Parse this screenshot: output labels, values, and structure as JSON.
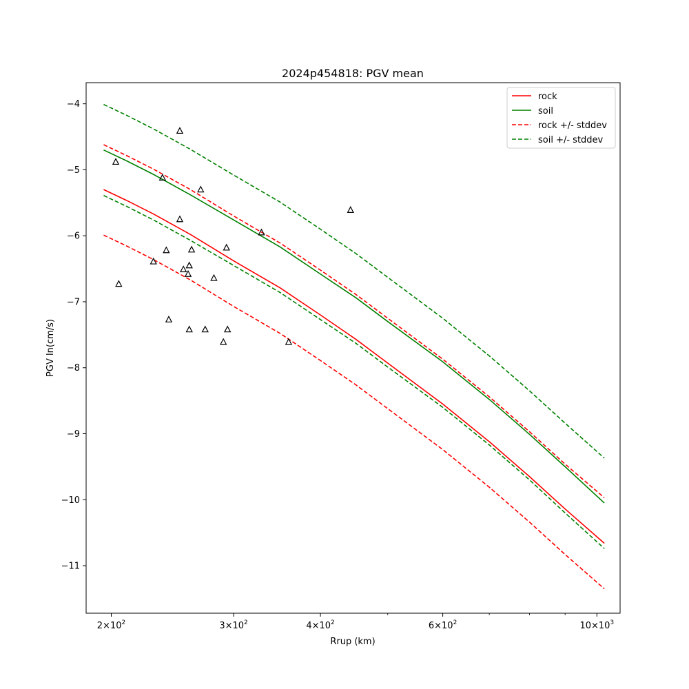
{
  "chart_data": {
    "type": "line",
    "title": "2024p454818: PGV mean",
    "xlabel": "Rrup (km)",
    "ylabel": "PGV ln(cm/s)",
    "xscale": "log",
    "xlim": [
      184,
      1080
    ],
    "ylim": [
      -11.72,
      -3.68
    ],
    "legend_position": "top-right",
    "grid": false,
    "x_major_ticks": [
      {
        "value": 200,
        "base": "2",
        "sup": "2"
      },
      {
        "value": 300,
        "base": "3",
        "sup": "2"
      },
      {
        "value": 400,
        "base": "4",
        "sup": "2"
      },
      {
        "value": 600,
        "base": "6",
        "sup": "2"
      },
      {
        "value": 1000,
        "base": "10",
        "sup": "3"
      }
    ],
    "x_minor_ticks": [
      500,
      700,
      800,
      900
    ],
    "y_ticks": [
      -4,
      -5,
      -6,
      -7,
      -8,
      -9,
      -10,
      -11
    ],
    "y_tick_labels": [
      "−4",
      "−5",
      "−6",
      "−7",
      "−8",
      "−9",
      "−10",
      "−11"
    ],
    "series": [
      {
        "name": "rock",
        "color": "#ff0000",
        "dash": "solid",
        "points": [
          [
            195,
            -5.3
          ],
          [
            210,
            -5.46
          ],
          [
            230,
            -5.67
          ],
          [
            260,
            -5.98
          ],
          [
            300,
            -6.38
          ],
          [
            350,
            -6.79
          ],
          [
            400,
            -7.2
          ],
          [
            450,
            -7.57
          ],
          [
            500,
            -7.93
          ],
          [
            600,
            -8.55
          ],
          [
            700,
            -9.12
          ],
          [
            800,
            -9.65
          ],
          [
            900,
            -10.14
          ],
          [
            1025,
            -10.66
          ]
        ]
      },
      {
        "name": "soil",
        "color": "#008000",
        "dash": "solid",
        "points": [
          [
            195,
            -4.7
          ],
          [
            210,
            -4.86
          ],
          [
            230,
            -5.07
          ],
          [
            260,
            -5.38
          ],
          [
            300,
            -5.76
          ],
          [
            350,
            -6.17
          ],
          [
            400,
            -6.58
          ],
          [
            450,
            -6.94
          ],
          [
            500,
            -7.3
          ],
          [
            600,
            -7.91
          ],
          [
            700,
            -8.48
          ],
          [
            800,
            -9.01
          ],
          [
            900,
            -9.5
          ],
          [
            1025,
            -10.05
          ]
        ]
      },
      {
        "name": "rock +/- stddev",
        "color": "#ff0000",
        "dash": "dashed",
        "points": [
          [
            195,
            -4.62
          ],
          [
            210,
            -4.78
          ],
          [
            230,
            -4.99
          ],
          [
            260,
            -5.3
          ],
          [
            300,
            -5.7
          ],
          [
            350,
            -6.11
          ],
          [
            400,
            -6.52
          ],
          [
            450,
            -6.89
          ],
          [
            500,
            -7.25
          ],
          [
            600,
            -7.87
          ],
          [
            700,
            -8.44
          ],
          [
            800,
            -8.97
          ],
          [
            900,
            -9.46
          ],
          [
            1025,
            -9.97
          ]
        ]
      },
      {
        "name": "",
        "color": "#ff0000",
        "dash": "dashed",
        "points": [
          [
            195,
            -5.99
          ],
          [
            210,
            -6.15
          ],
          [
            230,
            -6.36
          ],
          [
            260,
            -6.67
          ],
          [
            300,
            -7.07
          ],
          [
            350,
            -7.48
          ],
          [
            400,
            -7.89
          ],
          [
            450,
            -8.26
          ],
          [
            500,
            -8.62
          ],
          [
            600,
            -9.24
          ],
          [
            700,
            -9.81
          ],
          [
            800,
            -10.34
          ],
          [
            900,
            -10.83
          ],
          [
            1025,
            -11.35
          ]
        ]
      },
      {
        "name": "soil +/- stddev",
        "color": "#008000",
        "dash": "dashed",
        "points": [
          [
            195,
            -4.01
          ],
          [
            210,
            -4.17
          ],
          [
            230,
            -4.38
          ],
          [
            260,
            -4.69
          ],
          [
            300,
            -5.08
          ],
          [
            350,
            -5.49
          ],
          [
            400,
            -5.9
          ],
          [
            450,
            -6.27
          ],
          [
            500,
            -6.63
          ],
          [
            600,
            -7.25
          ],
          [
            700,
            -7.82
          ],
          [
            800,
            -8.35
          ],
          [
            900,
            -8.84
          ],
          [
            1025,
            -9.37
          ]
        ]
      },
      {
        "name": "",
        "color": "#008000",
        "dash": "dashed",
        "points": [
          [
            195,
            -5.39
          ],
          [
            210,
            -5.55
          ],
          [
            230,
            -5.76
          ],
          [
            260,
            -6.07
          ],
          [
            300,
            -6.45
          ],
          [
            350,
            -6.86
          ],
          [
            400,
            -7.27
          ],
          [
            450,
            -7.63
          ],
          [
            500,
            -7.99
          ],
          [
            600,
            -8.6
          ],
          [
            700,
            -9.17
          ],
          [
            800,
            -9.7
          ],
          [
            900,
            -10.2
          ],
          [
            1025,
            -10.74
          ]
        ]
      }
    ],
    "observations": [
      [
        203,
        -4.88
      ],
      [
        205,
        -6.73
      ],
      [
        230,
        -6.39
      ],
      [
        240,
        -6.22
      ],
      [
        242,
        -7.27
      ],
      [
        237,
        -5.12
      ],
      [
        251,
        -4.41
      ],
      [
        251,
        -5.75
      ],
      [
        254,
        -6.51
      ],
      [
        258,
        -6.58
      ],
      [
        259,
        -6.45
      ],
      [
        259,
        -7.42
      ],
      [
        261,
        -6.21
      ],
      [
        269,
        -5.3
      ],
      [
        273,
        -7.42
      ],
      [
        281,
        -6.64
      ],
      [
        290,
        -7.61
      ],
      [
        293,
        -6.18
      ],
      [
        294,
        -7.42
      ],
      [
        329,
        -5.95
      ],
      [
        360,
        -7.61
      ],
      [
        442,
        -5.61
      ]
    ],
    "legend": [
      {
        "label": "rock",
        "color": "#ff0000",
        "dash": "solid"
      },
      {
        "label": "soil",
        "color": "#008000",
        "dash": "solid"
      },
      {
        "label": "rock +/- stddev",
        "color": "#ff0000",
        "dash": "dashed"
      },
      {
        "label": "soil +/- stddev",
        "color": "#008000",
        "dash": "dashed"
      }
    ]
  }
}
